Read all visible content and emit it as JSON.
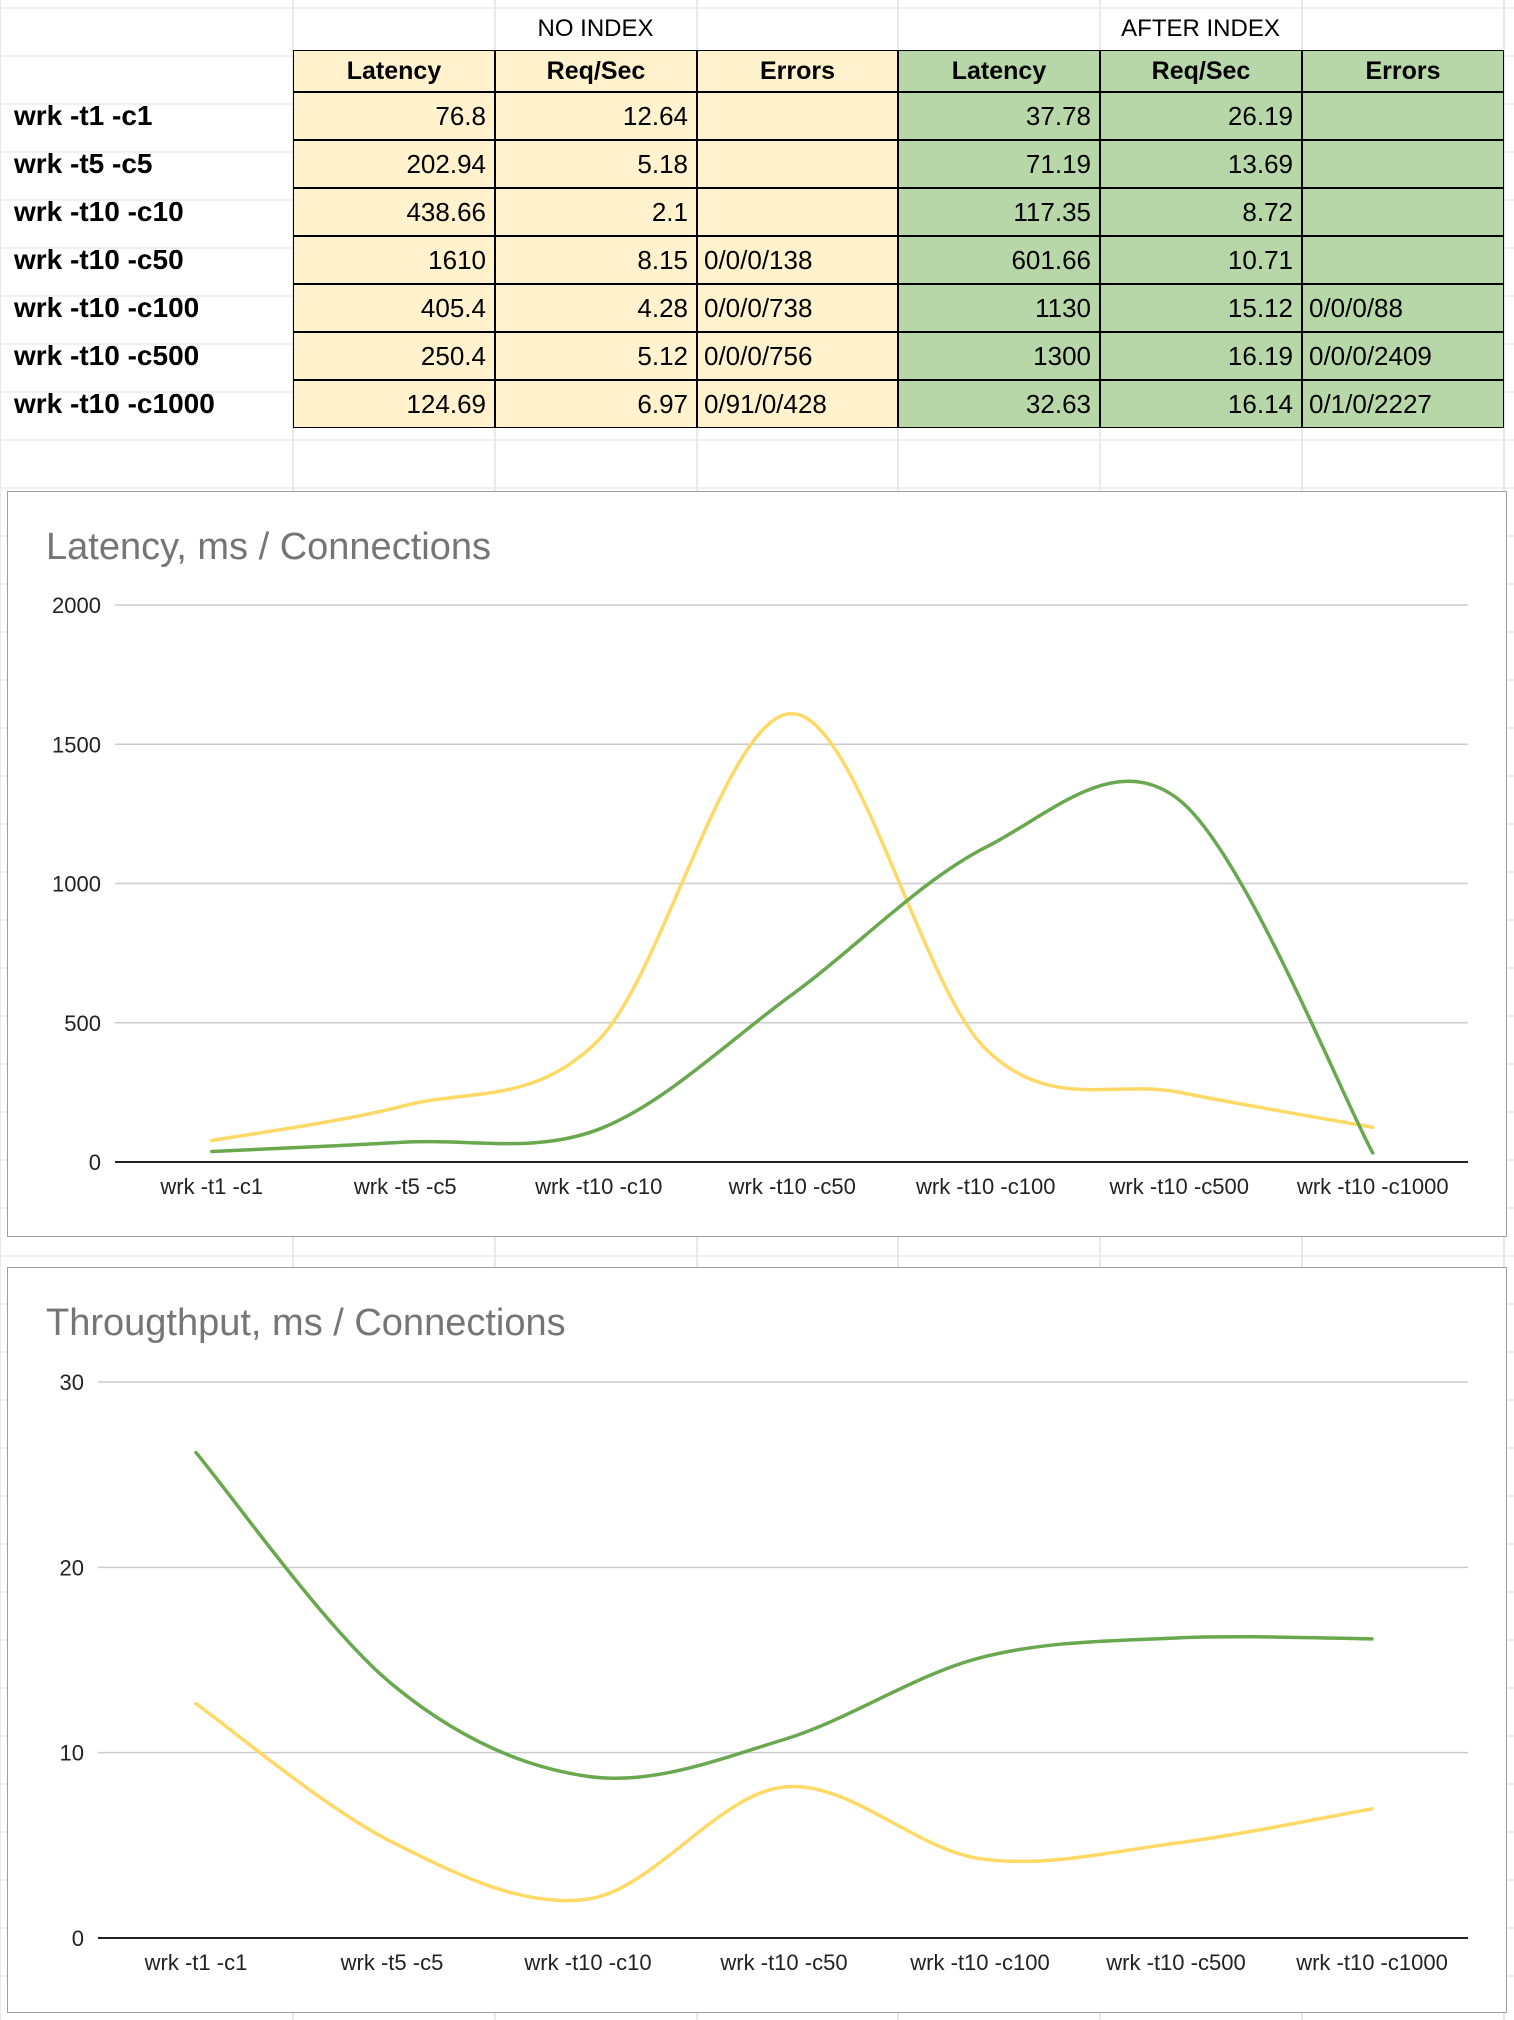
{
  "table": {
    "group_no_index": "NO INDEX",
    "group_after_index": "AFTER INDEX",
    "columns": [
      "Latency",
      "Req/Sec",
      "Errors"
    ],
    "rows": [
      {
        "label": "wrk -t1 -c1",
        "no_latency": "76.8",
        "no_reqsec": "12.64",
        "no_errors": "",
        "after_latency": "37.78",
        "after_reqsec": "26.19",
        "after_errors": ""
      },
      {
        "label": "wrk -t5 -c5",
        "no_latency": "202.94",
        "no_reqsec": "5.18",
        "no_errors": "",
        "after_latency": "71.19",
        "after_reqsec": "13.69",
        "after_errors": ""
      },
      {
        "label": "wrk -t10 -c10",
        "no_latency": "438.66",
        "no_reqsec": "2.1",
        "no_errors": "",
        "after_latency": "117.35",
        "after_reqsec": "8.72",
        "after_errors": ""
      },
      {
        "label": "wrk -t10 -c50",
        "no_latency": "1610",
        "no_reqsec": "8.15",
        "no_errors": "0/0/0/138",
        "after_latency": "601.66",
        "after_reqsec": "10.71",
        "after_errors": ""
      },
      {
        "label": "wrk -t10 -c100",
        "no_latency": "405.4",
        "no_reqsec": "4.28",
        "no_errors": "0/0/0/738",
        "after_latency": "1130",
        "after_reqsec": "15.12",
        "after_errors": "0/0/0/88"
      },
      {
        "label": "wrk -t10 -c500",
        "no_latency": "250.4",
        "no_reqsec": "5.12",
        "no_errors": "0/0/0/756",
        "after_latency": "1300",
        "after_reqsec": "16.19",
        "after_errors": "0/0/0/2409"
      },
      {
        "label": "wrk -t10 -c1000",
        "no_latency": "124.69",
        "no_reqsec": "6.97",
        "no_errors": "0/91/0/428",
        "after_latency": "32.63",
        "after_reqsec": "16.14",
        "after_errors": "0/1/0/2227"
      }
    ]
  },
  "colors": {
    "no_index_fill": "#fff2cc",
    "after_index_fill": "#b7d7a8",
    "no_index_line": "#ffd966",
    "after_index_line": "#6aa84f",
    "gridline": "#cccccc",
    "title": "#757575"
  },
  "chart_data": [
    {
      "type": "line",
      "title": "Latency, ms / Connections",
      "categories": [
        "wrk -t1 -c1",
        "wrk -t5 -c5",
        "wrk -t10 -c10",
        "wrk -t10 -c50",
        "wrk -t10 -c100",
        "wrk -t10 -c500",
        "wrk -t10 -c1000"
      ],
      "series": [
        {
          "values": [
            76.8,
            202.94,
            438.66,
            1610,
            405.4,
            250.4,
            124.69
          ],
          "color": "#ffd966"
        },
        {
          "values": [
            37.78,
            71.19,
            117.35,
            601.66,
            1130,
            1300,
            32.63
          ],
          "color": "#6aa84f"
        }
      ],
      "ylim": [
        0,
        2000
      ],
      "yticks": [
        "0",
        "500",
        "1000",
        "1500",
        "2000"
      ],
      "ytick_values": [
        0,
        500,
        1000,
        1500,
        2000
      ],
      "grid": true,
      "legend": "none",
      "smooth": true
    },
    {
      "type": "line",
      "title": "Througthput, ms / Connections",
      "categories": [
        "wrk -t1 -c1",
        "wrk -t5 -c5",
        "wrk -t10 -c10",
        "wrk -t10 -c50",
        "wrk -t10 -c100",
        "wrk -t10 -c500",
        "wrk -t10 -c1000"
      ],
      "series": [
        {
          "values": [
            12.64,
            5.18,
            2.1,
            8.15,
            4.28,
            5.12,
            6.97
          ],
          "color": "#ffd966"
        },
        {
          "values": [
            26.19,
            13.69,
            8.72,
            10.71,
            15.12,
            16.19,
            16.14
          ],
          "color": "#6aa84f"
        }
      ],
      "ylim": [
        0,
        30
      ],
      "yticks": [
        "0",
        "10",
        "20",
        "30"
      ],
      "ytick_values": [
        0,
        10,
        20,
        30
      ],
      "grid": true,
      "legend": "none",
      "smooth": true
    }
  ]
}
